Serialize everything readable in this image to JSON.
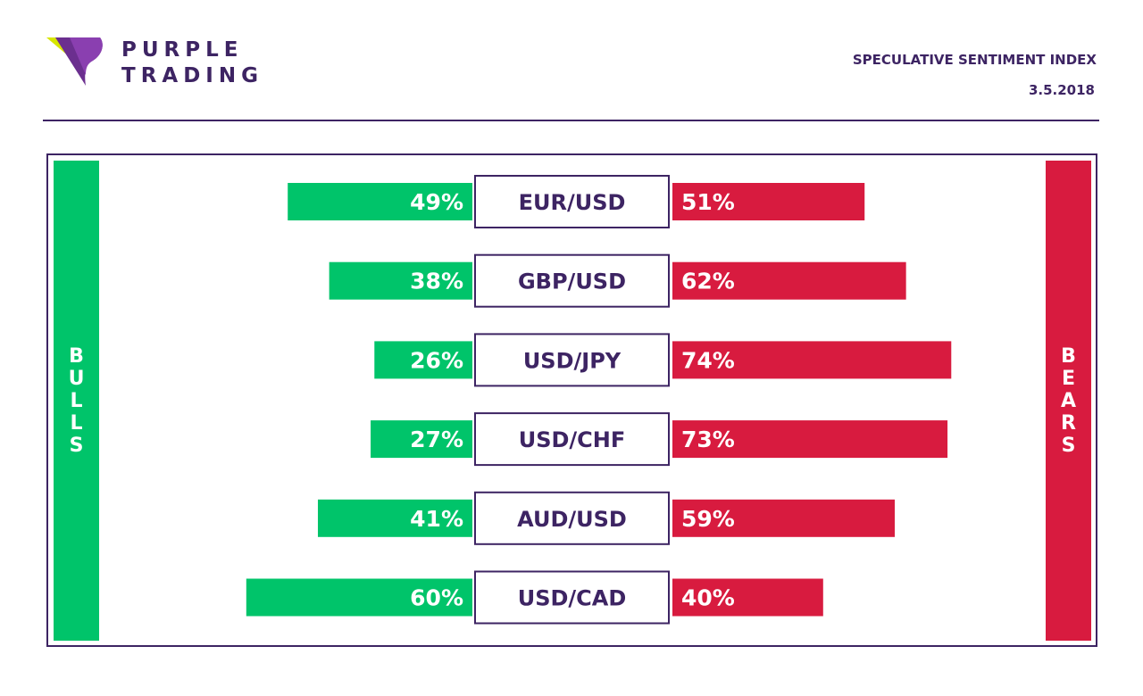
{
  "brand": {
    "line1": "PURPLE",
    "line2": "TRADING"
  },
  "header": {
    "title": "SPECULATIVE SENTIMENT INDEX",
    "date": "3.5.2018"
  },
  "side_labels": {
    "bulls": "BULLS",
    "bears": "BEARS"
  },
  "colors": {
    "bulls": "#00c46a",
    "bears": "#d81b3f",
    "brand": "#3d2463",
    "accent": "#d7e600"
  },
  "chart_data": {
    "type": "bar",
    "categories": [
      "EUR/USD",
      "GBP/USD",
      "USD/JPY",
      "USD/CHF",
      "AUD/USD",
      "USD/CAD"
    ],
    "series": [
      {
        "name": "BULLS",
        "values": [
          49,
          38,
          26,
          27,
          41,
          60
        ]
      },
      {
        "name": "BEARS",
        "values": [
          51,
          62,
          74,
          73,
          59,
          40
        ]
      }
    ],
    "value_labels": {
      "bulls": [
        "49%",
        "38%",
        "26%",
        "27%",
        "41%",
        "60%"
      ],
      "bears": [
        "51%",
        "62%",
        "74%",
        "73%",
        "59%",
        "40%"
      ]
    },
    "unit": "%",
    "orientation": "diverging-horizontal",
    "grid": false
  }
}
